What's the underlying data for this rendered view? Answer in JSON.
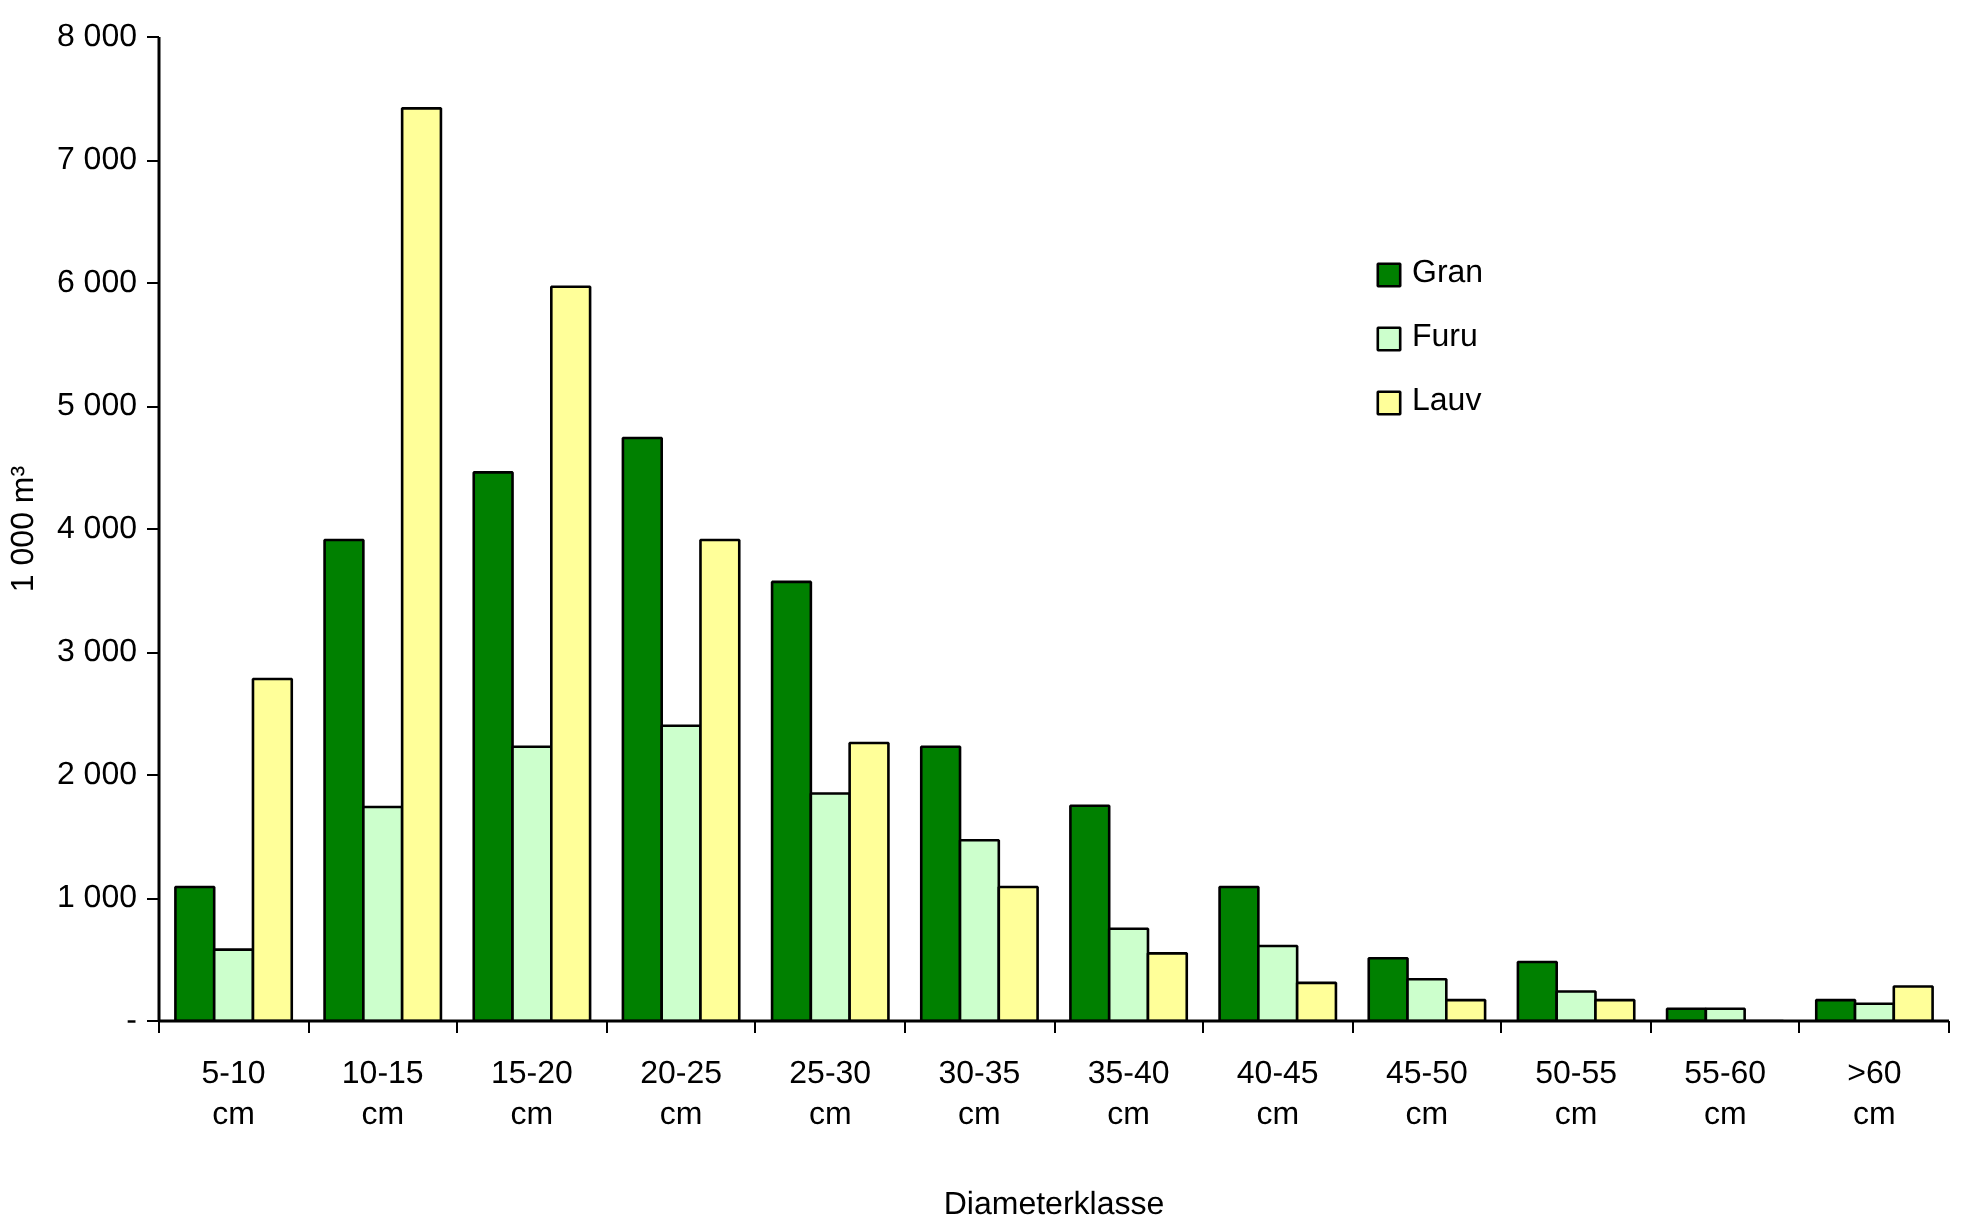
{
  "chart_data": {
    "type": "bar",
    "xlabel": "Diameterklasse",
    "ylabel": "1 000 m³",
    "categories": [
      "5-10 cm",
      "10-15 cm",
      "15-20 cm",
      "20-25 cm",
      "25-30 cm",
      "30-35 cm",
      "35-40 cm",
      "40-45 cm",
      "45-50 cm",
      "50-55 cm",
      "55-60 cm",
      ">60 cm"
    ],
    "series": [
      {
        "name": "Gran",
        "color": "#008000",
        "values": [
          1090,
          3910,
          4460,
          4740,
          3570,
          2230,
          1750,
          1090,
          510,
          480,
          100,
          170
        ]
      },
      {
        "name": "Furu",
        "color": "#ccffcc",
        "values": [
          580,
          1740,
          2230,
          2400,
          1850,
          1470,
          750,
          610,
          340,
          240,
          100,
          140
        ]
      },
      {
        "name": "Lauv",
        "color": "#ffff99",
        "values": [
          2780,
          7420,
          5970,
          3910,
          2260,
          1090,
          550,
          310,
          170,
          170,
          null,
          280
        ]
      }
    ],
    "ylim": [
      0,
      8000
    ],
    "yticks": [
      {
        "value": 0,
        "label": "-"
      },
      {
        "value": 1000,
        "label": "1 000"
      },
      {
        "value": 2000,
        "label": "2 000"
      },
      {
        "value": 3000,
        "label": "3 000"
      },
      {
        "value": 4000,
        "label": "4 000"
      },
      {
        "value": 5000,
        "label": "5 000"
      },
      {
        "value": 6000,
        "label": "6 000"
      },
      {
        "value": 7000,
        "label": "7 000"
      },
      {
        "value": 8000,
        "label": "8 000"
      }
    ],
    "grid": false,
    "legend": "top right"
  }
}
